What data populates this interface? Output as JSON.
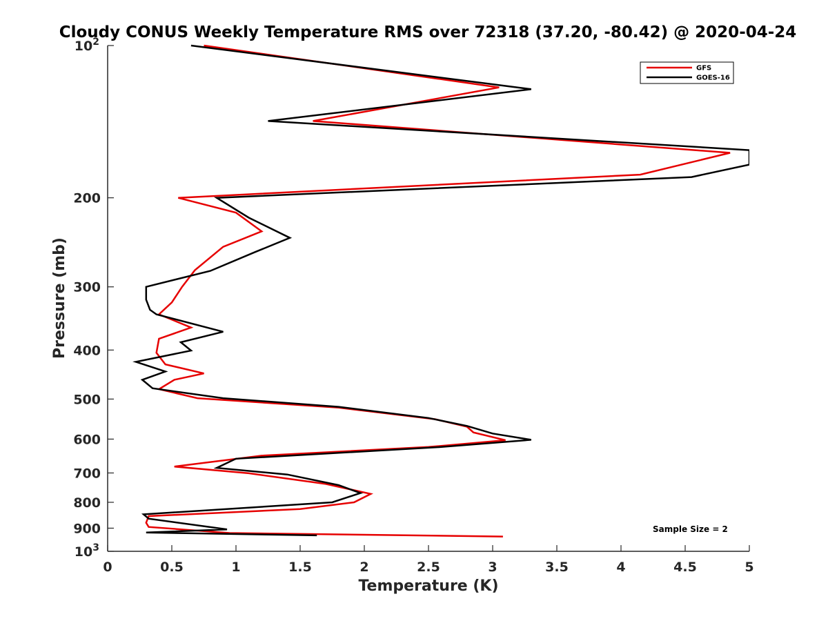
{
  "chart_data": {
    "type": "line",
    "title": "Cloudy CONUS Weekly Temperature RMS over 72318 (37.20, -80.42) @ 2020-04-24",
    "xlabel": "Temperature (K)",
    "ylabel": "Pressure (mb)",
    "xlim": [
      0,
      5
    ],
    "ylim": [
      100,
      1000
    ],
    "y_scale": "log",
    "y_reversed": true,
    "grid": false,
    "legend_position": "top-right",
    "x_ticks": [
      "0",
      "0.5",
      "1",
      "1.5",
      "2",
      "2.5",
      "3",
      "3.5",
      "4",
      "4.5",
      "5"
    ],
    "y_ticks": [
      {
        "value": 100,
        "label": "10",
        "sup": "2"
      },
      {
        "value": 200,
        "label": "200",
        "sup": ""
      },
      {
        "value": 300,
        "label": "300",
        "sup": ""
      },
      {
        "value": 400,
        "label": "400",
        "sup": ""
      },
      {
        "value": 500,
        "label": "500",
        "sup": ""
      },
      {
        "value": 600,
        "label": "600",
        "sup": ""
      },
      {
        "value": 700,
        "label": "700",
        "sup": ""
      },
      {
        "value": 800,
        "label": "800",
        "sup": ""
      },
      {
        "value": 900,
        "label": "900",
        "sup": ""
      },
      {
        "value": 1000,
        "label": "10",
        "sup": "3"
      }
    ],
    "annotation": "Sample Size = 2",
    "series": [
      {
        "name": "GFS",
        "color": "#e60000",
        "points": [
          [
            0.75,
            100
          ],
          [
            3.05,
            121
          ],
          [
            1.6,
            141
          ],
          [
            4.85,
            163
          ],
          [
            4.15,
            180
          ],
          [
            0.55,
            200
          ],
          [
            1.0,
            214
          ],
          [
            1.2,
            233
          ],
          [
            0.9,
            250
          ],
          [
            0.68,
            278
          ],
          [
            0.58,
            300
          ],
          [
            0.5,
            322
          ],
          [
            0.4,
            340
          ],
          [
            0.65,
            361
          ],
          [
            0.4,
            380
          ],
          [
            0.38,
            405
          ],
          [
            0.45,
            427
          ],
          [
            0.75,
            445
          ],
          [
            0.52,
            458
          ],
          [
            0.4,
            478
          ],
          [
            0.7,
            498
          ],
          [
            1.8,
            520
          ],
          [
            2.55,
            548
          ],
          [
            2.8,
            567
          ],
          [
            2.85,
            582
          ],
          [
            3.1,
            603
          ],
          [
            2.5,
            622
          ],
          [
            1.2,
            647
          ],
          [
            0.52,
            680
          ],
          [
            1.1,
            701
          ],
          [
            1.7,
            736
          ],
          [
            2.05,
            770
          ],
          [
            1.92,
            800
          ],
          [
            1.5,
            825
          ],
          [
            0.32,
            852
          ],
          [
            0.3,
            878
          ],
          [
            0.32,
            895
          ],
          [
            0.95,
            920
          ],
          [
            3.08,
            935
          ]
        ]
      },
      {
        "name": "GOES-16",
        "color": "#000000",
        "points": [
          [
            0.65,
            100
          ],
          [
            3.3,
            122
          ],
          [
            1.25,
            141
          ],
          [
            5.0,
            161
          ],
          [
            5.0,
            172
          ],
          [
            4.55,
            182
          ],
          [
            0.85,
            200
          ],
          [
            1.1,
            219
          ],
          [
            1.42,
            240
          ],
          [
            1.15,
            256
          ],
          [
            0.8,
            279
          ],
          [
            0.3,
            300
          ],
          [
            0.3,
            318
          ],
          [
            0.33,
            333
          ],
          [
            0.38,
            340
          ],
          [
            0.9,
            368
          ],
          [
            0.57,
            386
          ],
          [
            0.65,
            401
          ],
          [
            0.22,
            422
          ],
          [
            0.45,
            441
          ],
          [
            0.27,
            458
          ],
          [
            0.35,
            476
          ],
          [
            0.9,
            498
          ],
          [
            1.8,
            518
          ],
          [
            2.5,
            545
          ],
          [
            2.8,
            565
          ],
          [
            3.0,
            585
          ],
          [
            3.3,
            602
          ],
          [
            2.6,
            622
          ],
          [
            1.0,
            656
          ],
          [
            0.85,
            684
          ],
          [
            1.4,
            705
          ],
          [
            1.8,
            740
          ],
          [
            1.97,
            767
          ],
          [
            1.75,
            800
          ],
          [
            0.28,
            845
          ],
          [
            0.32,
            862
          ],
          [
            0.93,
            905
          ],
          [
            0.3,
            918
          ],
          [
            1.63,
            930
          ]
        ]
      }
    ]
  }
}
